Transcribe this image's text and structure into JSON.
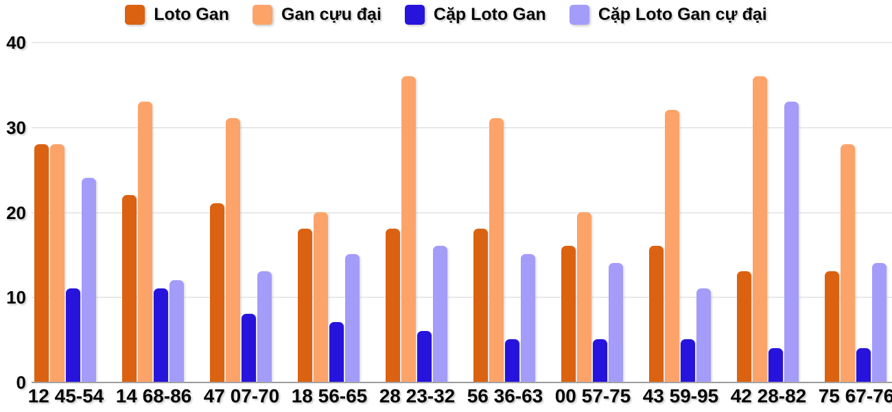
{
  "chart_data": {
    "type": "bar",
    "title": "",
    "categories": [
      "12 45-54",
      "14 68-86",
      "47 07-70",
      "18 56-65",
      "28 23-32",
      "56 36-63",
      "00 57-75",
      "43 59-95",
      "42 28-82",
      "75 67-76"
    ],
    "series": [
      {
        "name": "Loto Gan",
        "slug": "loto-gan",
        "color": "#DB6211",
        "values": [
          28,
          22,
          21,
          18,
          18,
          18,
          16,
          16,
          13,
          13
        ]
      },
      {
        "name": "Gan cựu đại",
        "slug": "gan-cuu-dai",
        "color": "#FCA369",
        "values": [
          28,
          33,
          31,
          20,
          36,
          31,
          20,
          32,
          36,
          28
        ]
      },
      {
        "name": "Cặp Loto Gan",
        "slug": "cap-loto-gan",
        "color": "#2714DC",
        "values": [
          11,
          11,
          8,
          7,
          6,
          5,
          5,
          5,
          4,
          4
        ]
      },
      {
        "name": "Cặp Loto Gan cự đại",
        "slug": "cap-loto-gan-cu-dai",
        "color": "#A39CF9",
        "values": [
          24,
          12,
          13,
          15,
          16,
          15,
          14,
          11,
          33,
          14
        ]
      }
    ],
    "xlabel": "",
    "ylabel": "",
    "ylim": [
      0,
      40
    ],
    "yticks": [
      0,
      10,
      20,
      30,
      40
    ],
    "grid": true,
    "legend_position": "top",
    "gridline_color": "#E8E8E8",
    "baseline_color": "#9B9B9B"
  }
}
